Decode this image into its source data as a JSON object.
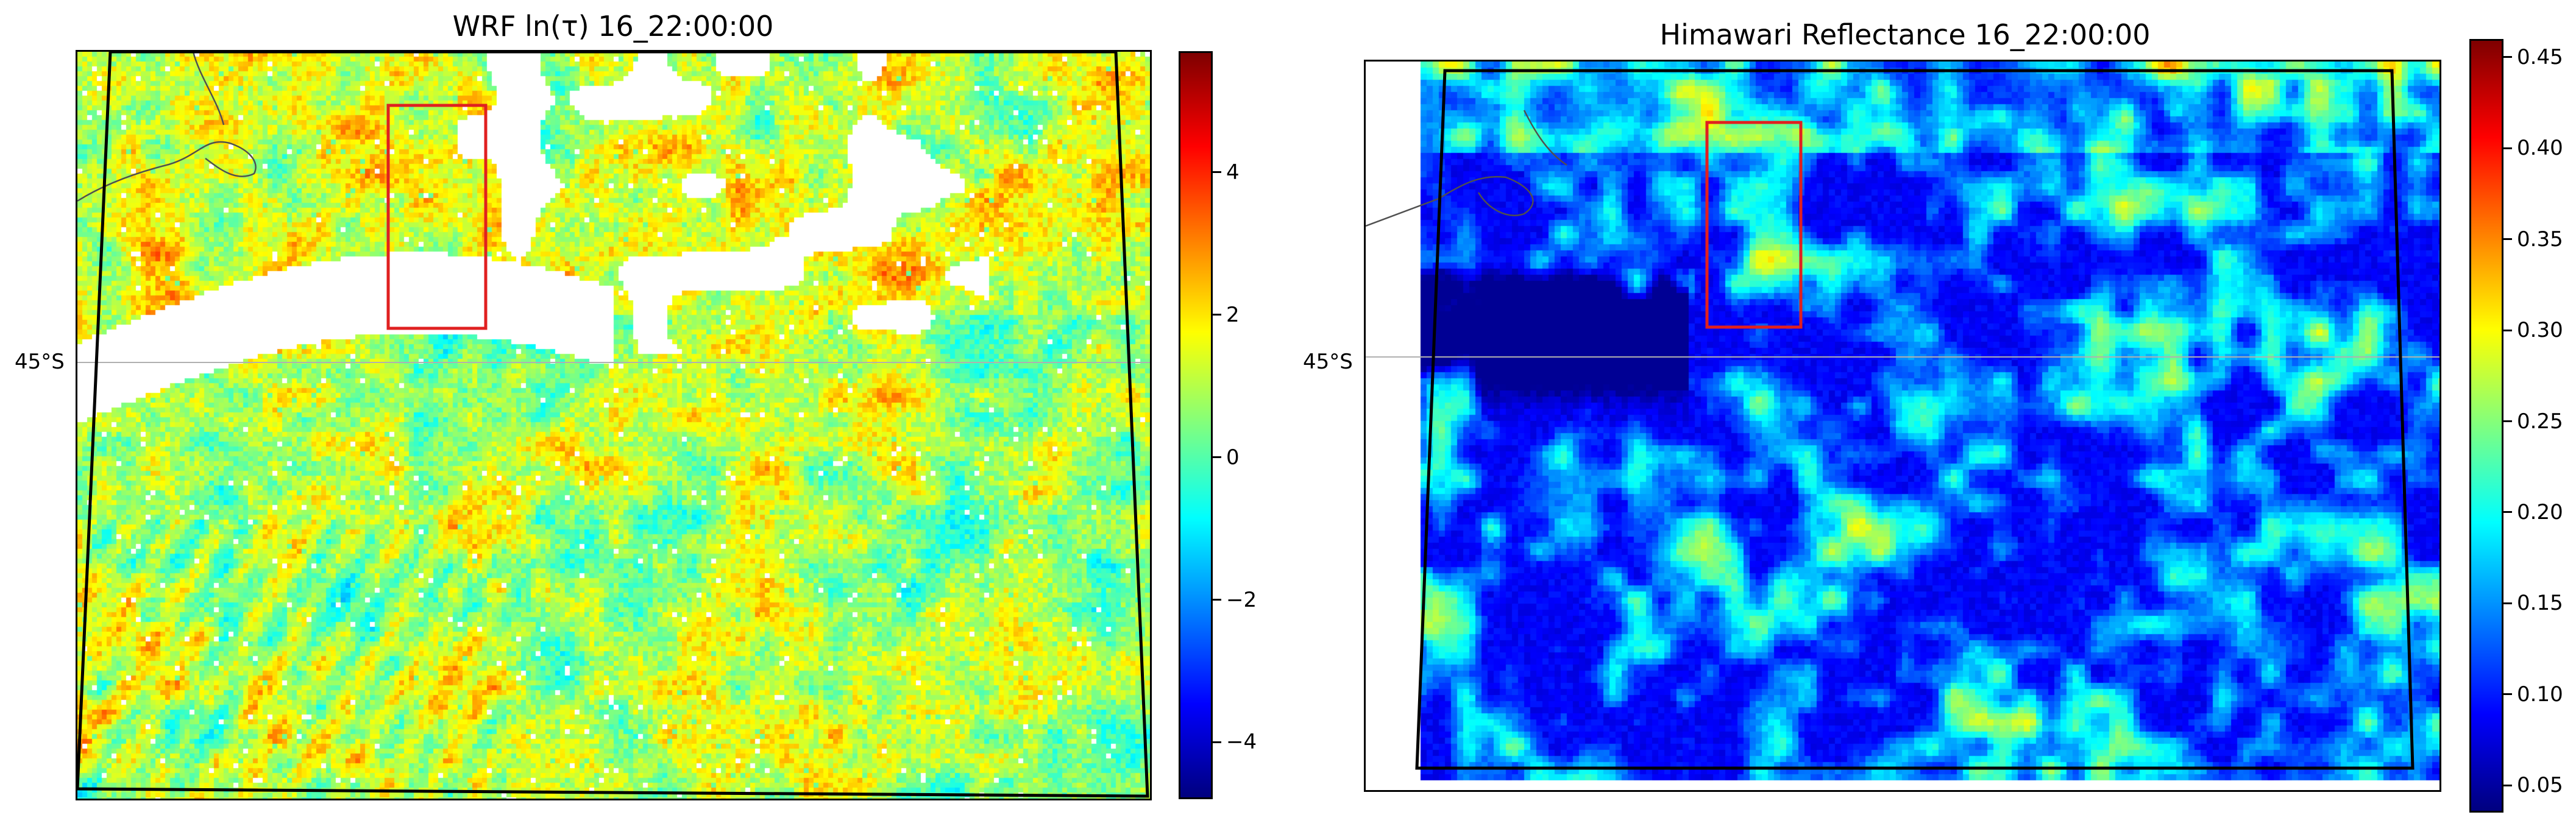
{
  "chart_data": [
    {
      "type": "heatmap",
      "title": "WRF ln(τ) 16_22:00:00",
      "latitude_label": "45°S",
      "colormap": "jet",
      "colorbar": {
        "range": [
          -4.8,
          5.7
        ],
        "ticks": [
          -4,
          -2,
          0,
          2,
          4
        ],
        "tick_labels": [
          "−4",
          "−2",
          "0",
          "2",
          "4"
        ]
      },
      "missing_color": "#ffffff",
      "highlight_box_color": "#e02020",
      "domain_outline_color": "#000000",
      "coastline_color": "#505050"
    },
    {
      "type": "heatmap",
      "title": "Himawari Reflectance 16_22:00:00",
      "latitude_label": "45°S",
      "colormap": "jet",
      "colorbar": {
        "range": [
          0.035,
          0.46
        ],
        "ticks": [
          0.05,
          0.1,
          0.15,
          0.2,
          0.25,
          0.3,
          0.35,
          0.4,
          0.45
        ],
        "tick_labels": [
          "0.05",
          "0.10",
          "0.15",
          "0.20",
          "0.25",
          "0.30",
          "0.35",
          "0.40",
          "0.45"
        ]
      },
      "missing_color": "#ffffff",
      "highlight_box_color": "#e02020",
      "domain_outline_color": "#000000",
      "coastline_color": "#505050"
    }
  ]
}
